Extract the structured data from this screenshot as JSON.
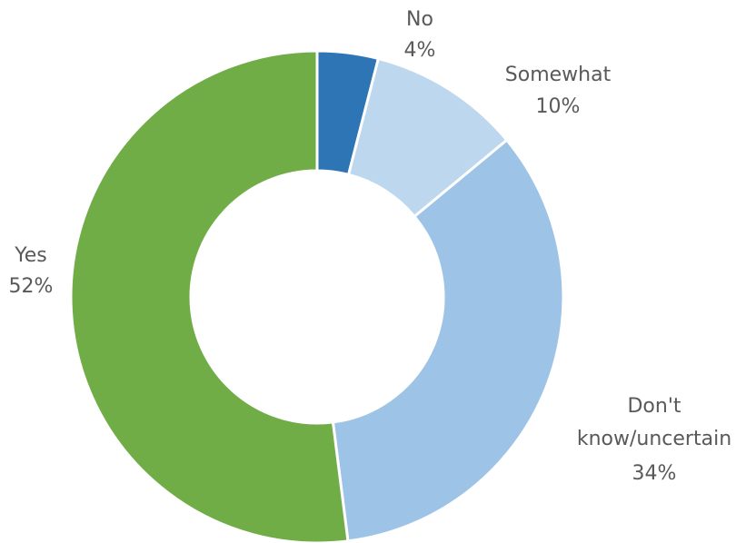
{
  "chart_data": {
    "type": "pie",
    "donut": true,
    "title": "",
    "start_angle": "top",
    "direction": "clockwise",
    "legend": "none",
    "slices": [
      {
        "name": "No",
        "value": 4,
        "label_lines": [
          "No"
        ],
        "pct_label": "4%",
        "color": "#2E75B6"
      },
      {
        "name": "Somewhat",
        "value": 10,
        "label_lines": [
          "Somewhat"
        ],
        "pct_label": "10%",
        "color": "#BDD7EE"
      },
      {
        "name": "Don't know/uncertain",
        "value": 34,
        "label_lines": [
          "Don't",
          "know/uncertain"
        ],
        "pct_label": "34%",
        "color": "#9DC3E6"
      },
      {
        "name": "Yes",
        "value": 52,
        "label_lines": [
          "Yes"
        ],
        "pct_label": "52%",
        "color": "#70AD47"
      }
    ]
  }
}
